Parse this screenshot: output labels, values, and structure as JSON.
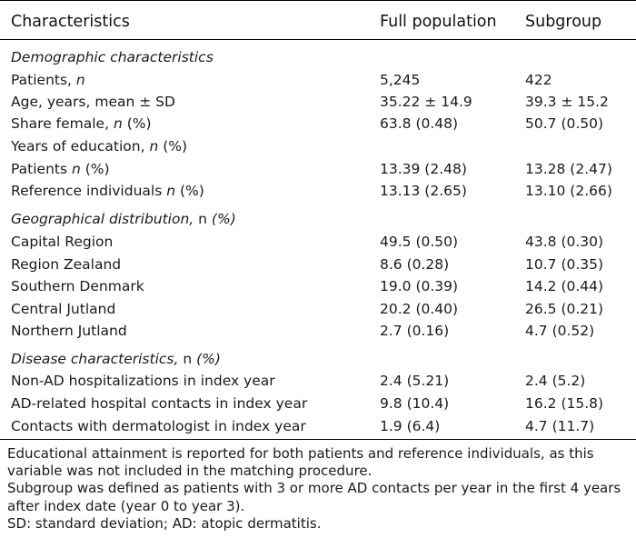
{
  "header": {
    "characteristics": "Characteristics",
    "full_population": "Full population",
    "subgroup": "Subgroup"
  },
  "demographic": {
    "title": "Demographic characteristics",
    "patients": {
      "label": "Patients, ",
      "n": "n",
      "full": "5,245",
      "sub": "422"
    },
    "age": {
      "label": "Age, years, mean ± SD",
      "full": "35.22 ± 14.9",
      "sub": "39.3 ± 15.2"
    },
    "female": {
      "label": "Share female, ",
      "n": "n",
      "pct": " (%)",
      "full": "63.8 (0.48)",
      "sub": "50.7 (0.50)"
    },
    "education": {
      "label": "Years of education, ",
      "n": "n",
      "pct": " (%)"
    },
    "edu_patients": {
      "label": "Patients ",
      "n": "n",
      "pct": " (%)",
      "full": "13.39 (2.48)",
      "sub": "13.28 (2.47)"
    },
    "edu_reference": {
      "label": "Reference individuals ",
      "n": "n",
      "pct": " (%)",
      "full": "13.13 (2.65)",
      "sub": "13.10 (2.66)"
    }
  },
  "geographical": {
    "title": "Geographical distribution,",
    "title_n": " n",
    "title_pct": " (%)",
    "rows": [
      {
        "label": "Capital Region",
        "full": "49.5 (0.50)",
        "sub": "43.8 (0.30)"
      },
      {
        "label": "Region Zealand",
        "full": "8.6 (0.28)",
        "sub": "10.7 (0.35)"
      },
      {
        "label": "Southern Denmark",
        "full": "19.0 (0.39)",
        "sub": "14.2 (0.44)"
      },
      {
        "label": "Central Jutland",
        "full": "20.2 (0.40)",
        "sub": "26.5 (0.21)"
      },
      {
        "label": "Northern Jutland",
        "full": "2.7 (0.16)",
        "sub": "4.7 (0.52)"
      }
    ]
  },
  "disease": {
    "title": "Disease characteristics,",
    "title_n": " n",
    "title_pct": " (%)",
    "rows": [
      {
        "label": "Non-AD hospitalizations in index year",
        "full": "2.4 (5.21)",
        "sub": "2.4 (5.2)"
      },
      {
        "label": "AD-related hospital contacts in index year",
        "full": "9.8 (10.4)",
        "sub": "16.2 (15.8)"
      },
      {
        "label": "Contacts with dermatologist in index year",
        "full": "1.9 (6.4)",
        "sub": "4.7 (11.7)"
      }
    ]
  },
  "notes": [
    "Educational attainment is reported for both patients and reference individuals, as this variable was not included in the matching procedure.",
    "Subgroup was defined as patients with 3 or more AD contacts per year in the first 4 years after index date (year 0 to year 3).",
    "SD: standard deviation; AD: atopic dermatitis."
  ]
}
